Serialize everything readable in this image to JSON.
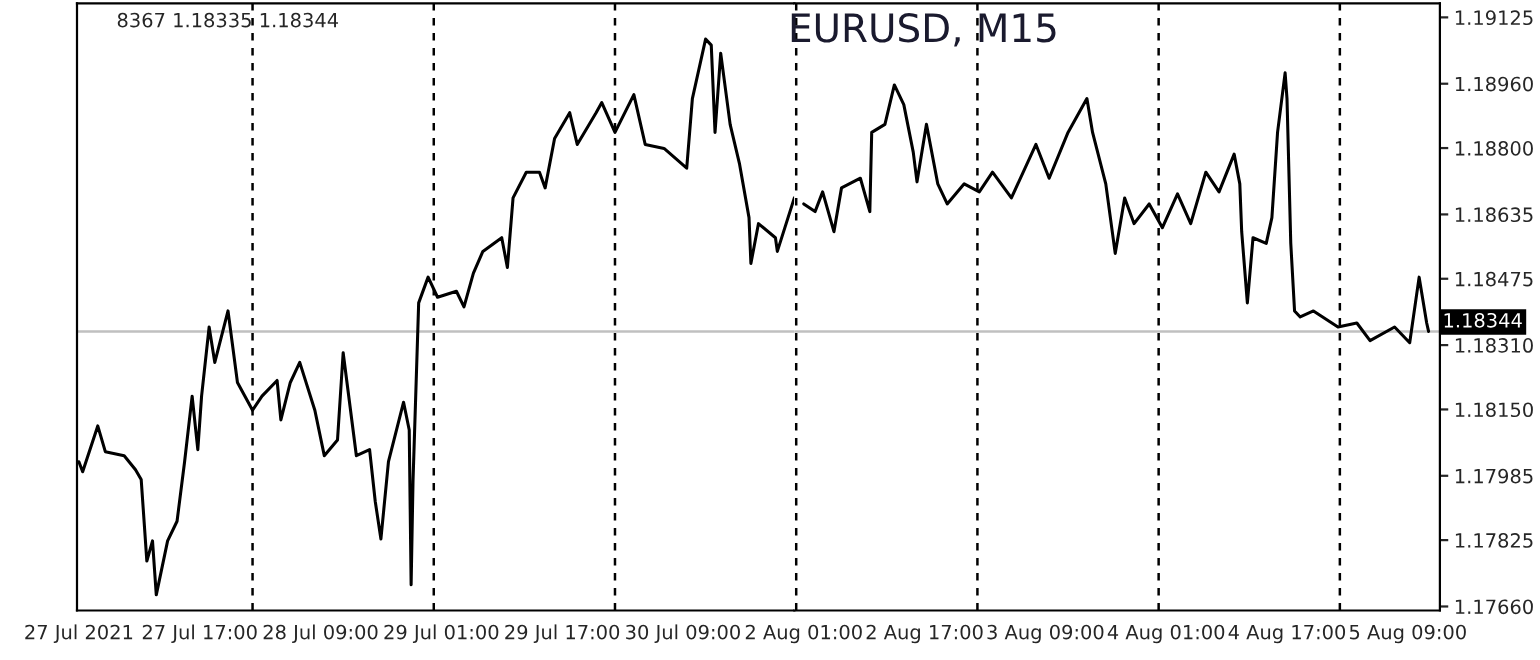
{
  "chart_data": [
    {
      "type": "line",
      "annotations": [
        "8367 1.18335 1.18344"
      ],
      "x": [
        "2021-07-27T01:00",
        "2021-07-27T01:30",
        "2021-07-27T03:30",
        "2021-07-27T04:30",
        "2021-07-27T07:00",
        "2021-07-27T08:30",
        "2021-07-27T09:15",
        "2021-07-27T10:00",
        "2021-07-27T10:45",
        "2021-07-27T11:15",
        "2021-07-27T12:45",
        "2021-07-27T14:00",
        "2021-07-27T15:00",
        "2021-07-27T16:00",
        "2021-07-27T16:45",
        "2021-07-27T17:15",
        "2021-07-27T18:15",
        "2021-07-27T19:00",
        "2021-07-27T20:45",
        "2021-07-27T22:00",
        "2021-07-28T00:00",
        "2021-07-28T01:15",
        "2021-07-28T03:15",
        "2021-07-28T03:45",
        "2021-07-28T05:00",
        "2021-07-28T06:15",
        "2021-07-28T08:15",
        "2021-07-28T09:30",
        "2021-07-28T11:15",
        "2021-07-28T12:00",
        "2021-07-28T13:45",
        "2021-07-28T15:30",
        "2021-07-28T16:15",
        "2021-07-28T17:00",
        "2021-07-28T18:00",
        "2021-07-28T20:00",
        "2021-07-28T20:45",
        "2021-07-28T21:00",
        "2021-07-28T21:15",
        "2021-07-28T22:00",
        "2021-07-28T23:15",
        "2021-07-29T00:30",
        "2021-07-29T03:00",
        "2021-07-29T04:00",
        "2021-07-29T05:15",
        "2021-07-29T06:30",
        "2021-07-29T09:00",
        "2021-07-29T09:45",
        "2021-07-29T10:30",
        "2021-07-29T12:15",
        "2021-07-29T14:00",
        "2021-07-29T14:45",
        "2021-07-29T16:00",
        "2021-07-29T18:00",
        "2021-07-29T19:00",
        "2021-07-29T21:30",
        "2021-07-29T22:15",
        "2021-07-30T00:00",
        "2021-07-30T02:30",
        "2021-07-30T04:00",
        "2021-07-30T06:30",
        "2021-07-30T09:30",
        "2021-07-30T10:15",
        "2021-07-30T12:00",
        "2021-07-30T12:45",
        "2021-07-30T13:15",
        "2021-07-30T14:00",
        "2021-07-30T15:15",
        "2021-07-30T16:30",
        "2021-07-30T17:45",
        "2021-07-30T18:00",
        "2021-07-30T19:00",
        "2021-07-30T21:15",
        "2021-07-30T21:30",
        "2021-07-30T23:45"
      ],
      "series": [
        {
          "color": "#000000",
          "values": [
            1.1802,
            1.17995,
            1.18109,
            1.18045,
            1.18035,
            1.18,
            1.17976,
            1.17773,
            1.17823,
            1.17689,
            1.17823,
            1.17872,
            1.1802,
            1.18183,
            1.1805,
            1.18183,
            1.18355,
            1.18267,
            1.18395,
            1.18217,
            1.18148,
            1.18183,
            1.18222,
            1.18124,
            1.18217,
            1.18267,
            1.18148,
            1.18035,
            1.18074,
            1.18291,
            1.18035,
            1.1805,
            1.17921,
            1.17828,
            1.1802,
            1.18168,
            1.18099,
            1.17714,
            1.17971,
            1.18415,
            1.18479,
            1.18429,
            1.18444,
            1.18405,
            1.18489,
            1.18543,
            1.18577,
            1.18503,
            1.18676,
            1.1874,
            1.1874,
            1.18701,
            1.18824,
            1.18888,
            1.18809,
            1.18888,
            1.18913,
            1.18839,
            1.18933,
            1.18809,
            1.18799,
            1.1875,
            1.18923,
            1.19071,
            1.19056,
            1.18839,
            1.19036,
            1.18859,
            1.1876,
            1.18627,
            1.18513,
            1.18612,
            1.18577,
            1.18543,
            1.18676
          ]
        }
      ],
      "xlim": [
        "2021-07-27T00:45",
        "2021-07-30T23:45"
      ],
      "xticks": [
        {
          "value": "2021-07-27T01:00",
          "label": "27 Jul 2021"
        },
        {
          "value": "2021-07-27T17:00",
          "label": "27 Jul 17:00"
        },
        {
          "value": "2021-07-28T09:00",
          "label": "28 Jul 09:00"
        },
        {
          "value": "2021-07-29T01:00",
          "label": "29 Jul 01:00"
        },
        {
          "value": "2021-07-29T17:00",
          "label": "29 Jul 17:00"
        },
        {
          "value": "2021-07-30T09:00",
          "label": "30 Jul 09:00"
        }
      ],
      "ylim": [
        1.1765,
        1.1916
      ],
      "tick_labels": "x",
      "grid": false,
      "marker": "none",
      "line_style": "solid",
      "ref_lines": [
        {
          "axis": "x",
          "value": "2021-07-28T00:00",
          "line_style": "dashed",
          "color": "#000000"
        },
        {
          "axis": "x",
          "value": "2021-07-29T00:00",
          "line_style": "dashed",
          "color": "#000000"
        },
        {
          "axis": "x",
          "value": "2021-07-30T00:00",
          "line_style": "dashed",
          "color": "#000000"
        },
        {
          "axis": "y",
          "value": 1.18344,
          "line_style": "solid",
          "color": "#c0c0c0"
        }
      ]
    },
    {
      "type": "line",
      "title": "EURUSD, M15",
      "x": [
        "2021-08-02T01:00",
        "2021-08-02T02:30",
        "2021-08-02T03:30",
        "2021-08-02T05:00",
        "2021-08-02T06:00",
        "2021-08-02T08:30",
        "2021-08-02T09:45",
        "2021-08-02T10:00",
        "2021-08-02T11:45",
        "2021-08-02T13:00",
        "2021-08-02T14:15",
        "2021-08-02T15:30",
        "2021-08-02T16:00",
        "2021-08-02T17:15",
        "2021-08-02T18:45",
        "2021-08-02T20:00",
        "2021-08-02T22:15",
        "2021-08-03T00:15",
        "2021-08-03T02:00",
        "2021-08-03T04:30",
        "2021-08-03T07:45",
        "2021-08-03T09:30",
        "2021-08-03T12:00",
        "2021-08-03T14:30",
        "2021-08-03T15:15",
        "2021-08-03T17:00",
        "2021-08-03T18:15",
        "2021-08-03T19:30",
        "2021-08-03T20:45",
        "2021-08-03T22:45",
        "2021-08-04T00:30",
        "2021-08-04T02:30",
        "2021-08-04T04:15",
        "2021-08-04T06:15",
        "2021-08-04T08:00",
        "2021-08-04T10:00",
        "2021-08-04T10:45",
        "2021-08-04T11:00",
        "2021-08-04T11:45",
        "2021-08-04T12:30",
        "2021-08-04T14:15",
        "2021-08-04T15:00",
        "2021-08-04T15:45",
        "2021-08-04T16:45",
        "2021-08-04T17:00",
        "2021-08-04T17:30",
        "2021-08-04T18:00",
        "2021-08-04T18:45",
        "2021-08-04T20:30",
        "2021-08-04T23:45",
        "2021-08-05T02:15",
        "2021-08-05T04:00",
        "2021-08-05T07:15",
        "2021-08-05T09:15",
        "2021-08-05T10:30",
        "2021-08-05T11:30",
        "2021-08-05T11:45"
      ],
      "series": [
        {
          "color": "#000000",
          "values": [
            1.18661,
            1.18642,
            1.18691,
            1.18592,
            1.18701,
            1.18725,
            1.18642,
            1.18839,
            1.18859,
            1.18957,
            1.18908,
            1.1879,
            1.18716,
            1.18859,
            1.18711,
            1.18661,
            1.18711,
            1.18691,
            1.1874,
            1.18676,
            1.18809,
            1.18725,
            1.18839,
            1.18923,
            1.18839,
            1.18711,
            1.18538,
            1.18676,
            1.18612,
            1.18661,
            1.18602,
            1.18686,
            1.18612,
            1.1874,
            1.18691,
            1.18785,
            1.18711,
            1.18592,
            1.18415,
            1.18577,
            1.18563,
            1.18627,
            1.18839,
            1.18987,
            1.18923,
            1.18563,
            1.18395,
            1.1838,
            1.18395,
            1.18355,
            1.18365,
            1.18321,
            1.18355,
            1.18316,
            1.18479,
            1.18365,
            1.18344
          ]
        }
      ],
      "xlim": [
        "2021-08-01T23:45",
        "2021-08-05T13:15"
      ],
      "xticks": [
        {
          "value": "2021-08-02T01:00",
          "label": "2 Aug 01:00"
        },
        {
          "value": "2021-08-02T17:00",
          "label": "2 Aug 17:00"
        },
        {
          "value": "2021-08-03T09:00",
          "label": "3 Aug 09:00"
        },
        {
          "value": "2021-08-04T01:00",
          "label": "4 Aug 01:00"
        },
        {
          "value": "2021-08-04T17:00",
          "label": "4 Aug 17:00"
        },
        {
          "value": "2021-08-05T09:00",
          "label": "5 Aug 09:00"
        }
      ],
      "ylim": [
        1.1765,
        1.1916
      ],
      "yticks": [
        {
          "value": 1.1766,
          "label": "1.17660"
        },
        {
          "value": 1.17825,
          "label": "1.17825"
        },
        {
          "value": 1.17985,
          "label": "1.17985"
        },
        {
          "value": 1.1815,
          "label": "1.18150"
        },
        {
          "value": 1.1831,
          "label": "1.18310"
        },
        {
          "value": 1.18475,
          "label": "1.18475"
        },
        {
          "value": 1.18635,
          "label": "1.18635"
        },
        {
          "value": 1.188,
          "label": "1.18800"
        },
        {
          "value": 1.1896,
          "label": "1.18960"
        },
        {
          "value": 1.19125,
          "label": "1.19125"
        }
      ],
      "grid": false,
      "marker": "none",
      "line_style": "solid",
      "ref_lines": [
        {
          "axis": "x",
          "value": "2021-08-02T00:00",
          "line_style": "dashed",
          "color": "#000000"
        },
        {
          "axis": "x",
          "value": "2021-08-03T00:00",
          "line_style": "dashed",
          "color": "#000000"
        },
        {
          "axis": "x",
          "value": "2021-08-04T00:00",
          "line_style": "dashed",
          "color": "#000000"
        },
        {
          "axis": "x",
          "value": "2021-08-05T00:00",
          "line_style": "dashed",
          "color": "#000000"
        },
        {
          "axis": "y",
          "value": 1.18344,
          "label": "1.18344",
          "line_style": "solid",
          "color": "#c0c0c0"
        }
      ]
    }
  ]
}
